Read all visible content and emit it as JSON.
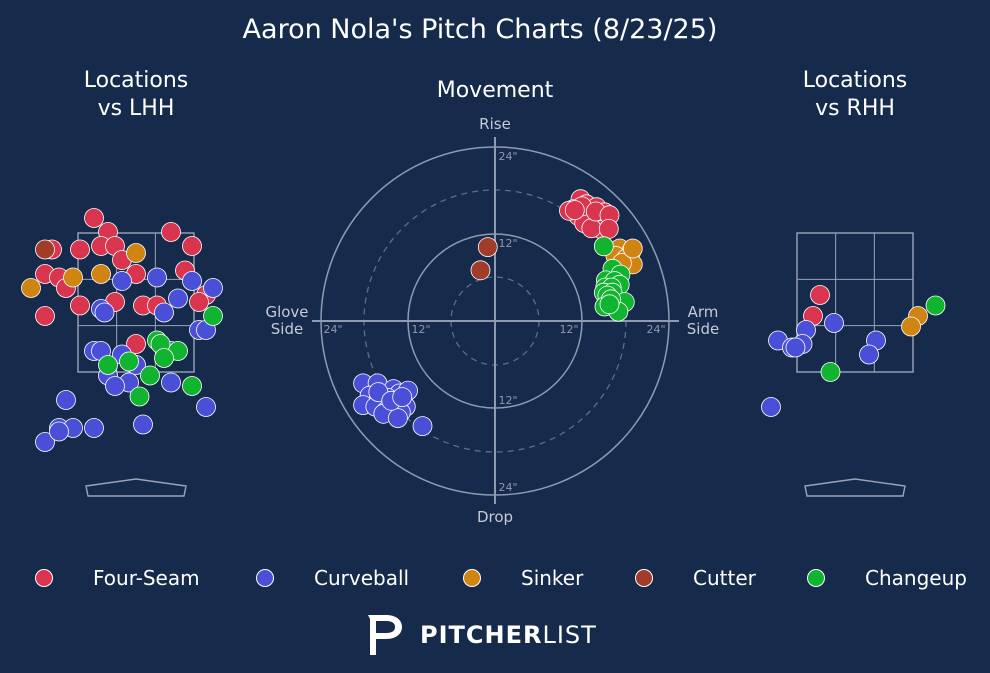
{
  "title": "Aaron Nola's Pitch Charts (8/23/25)",
  "panels": {
    "lhh_title": [
      "Locations",
      "vs LHH"
    ],
    "movement_title": "Movement",
    "rhh_title": [
      "Locations",
      "vs RHH"
    ]
  },
  "movement_labels": {
    "top": "Rise",
    "bottom": "Drop",
    "left": [
      "Glove",
      "Side"
    ],
    "right": [
      "Arm",
      "Side"
    ],
    "ring_labels": [
      "24\"",
      "12\"",
      "12\"",
      "24\"",
      "12\"",
      "24\"",
      "12\"",
      "24\""
    ]
  },
  "legend": [
    {
      "name": "Four-Seam",
      "color": "#d9354e"
    },
    {
      "name": "Curveball",
      "color": "#4a4fd8"
    },
    {
      "name": "Sinker",
      "color": "#d08412"
    },
    {
      "name": "Cutter",
      "color": "#a13b2a"
    },
    {
      "name": "Changeup",
      "color": "#10b42e"
    }
  ],
  "brand": {
    "bold": "PITCHER",
    "light": "LIST",
    "logo_icon": "pitcherlist-logo-icon"
  },
  "chart_data": [
    {
      "type": "scatter",
      "title": "Locations vs LHH",
      "x_units": "feet from plate center",
      "y_units": "feet above ground",
      "strike_zone": {
        "x": [
          -0.83,
          0.83
        ],
        "y": [
          1.5,
          3.5
        ]
      },
      "points": [
        {
          "pitch": "Four-Seam",
          "x": -0.6,
          "y": 3.7
        },
        {
          "pitch": "Four-Seam",
          "x": -0.4,
          "y": 3.5
        },
        {
          "pitch": "Four-Seam",
          "x": -0.5,
          "y": 3.3
        },
        {
          "pitch": "Four-Seam",
          "x": -0.3,
          "y": 3.3
        },
        {
          "pitch": "Four-Seam",
          "x": -0.8,
          "y": 3.25
        },
        {
          "pitch": "Four-Seam",
          "x": -1.2,
          "y": 3.25
        },
        {
          "pitch": "Four-Seam",
          "x": 0.5,
          "y": 3.5
        },
        {
          "pitch": "Four-Seam",
          "x": 0.8,
          "y": 3.3
        },
        {
          "pitch": "Four-Seam",
          "x": -0.2,
          "y": 3.1
        },
        {
          "pitch": "Four-Seam",
          "x": -1.3,
          "y": 2.9
        },
        {
          "pitch": "Four-Seam",
          "x": -1.1,
          "y": 2.85
        },
        {
          "pitch": "Four-Seam",
          "x": 0.0,
          "y": 2.9
        },
        {
          "pitch": "Four-Seam",
          "x": 0.7,
          "y": 2.95
        },
        {
          "pitch": "Four-Seam",
          "x": -1.0,
          "y": 2.7
        },
        {
          "pitch": "Four-Seam",
          "x": 1.0,
          "y": 2.6
        },
        {
          "pitch": "Four-Seam",
          "x": -0.3,
          "y": 2.5
        },
        {
          "pitch": "Four-Seam",
          "x": 0.1,
          "y": 2.45
        },
        {
          "pitch": "Four-Seam",
          "x": 0.3,
          "y": 2.45
        },
        {
          "pitch": "Four-Seam",
          "x": -0.8,
          "y": 2.45
        },
        {
          "pitch": "Four-Seam",
          "x": 0.9,
          "y": 2.5
        },
        {
          "pitch": "Four-Seam",
          "x": -1.3,
          "y": 2.3
        },
        {
          "pitch": "Four-Seam",
          "x": 0.0,
          "y": 1.9
        },
        {
          "pitch": "Curveball",
          "x": -0.5,
          "y": 2.4
        },
        {
          "pitch": "Curveball",
          "x": -0.2,
          "y": 2.8
        },
        {
          "pitch": "Curveball",
          "x": 0.3,
          "y": 2.85
        },
        {
          "pitch": "Curveball",
          "x": 0.8,
          "y": 2.8
        },
        {
          "pitch": "Curveball",
          "x": 1.1,
          "y": 2.7
        },
        {
          "pitch": "Curveball",
          "x": 0.6,
          "y": 2.55
        },
        {
          "pitch": "Curveball",
          "x": 0.4,
          "y": 2.35
        },
        {
          "pitch": "Curveball",
          "x": -0.45,
          "y": 2.35
        },
        {
          "pitch": "Curveball",
          "x": 0.9,
          "y": 2.1
        },
        {
          "pitch": "Curveball",
          "x": 1.0,
          "y": 2.1
        },
        {
          "pitch": "Curveball",
          "x": -0.6,
          "y": 1.8
        },
        {
          "pitch": "Curveball",
          "x": -0.5,
          "y": 1.8
        },
        {
          "pitch": "Curveball",
          "x": -0.2,
          "y": 1.75
        },
        {
          "pitch": "Curveball",
          "x": 0.5,
          "y": 1.8
        },
        {
          "pitch": "Curveball",
          "x": 0.0,
          "y": 1.6
        },
        {
          "pitch": "Curveball",
          "x": -0.4,
          "y": 1.45
        },
        {
          "pitch": "Curveball",
          "x": -0.1,
          "y": 1.35
        },
        {
          "pitch": "Curveball",
          "x": -0.3,
          "y": 1.3
        },
        {
          "pitch": "Curveball",
          "x": 0.5,
          "y": 1.35
        },
        {
          "pitch": "Curveball",
          "x": -1.0,
          "y": 1.1
        },
        {
          "pitch": "Curveball",
          "x": 1.0,
          "y": 1.0
        },
        {
          "pitch": "Curveball",
          "x": -1.1,
          "y": 0.7
        },
        {
          "pitch": "Curveball",
          "x": -0.9,
          "y": 0.7
        },
        {
          "pitch": "Curveball",
          "x": -0.6,
          "y": 0.7
        },
        {
          "pitch": "Curveball",
          "x": 0.1,
          "y": 0.75
        },
        {
          "pitch": "Curveball",
          "x": -1.3,
          "y": 0.5
        },
        {
          "pitch": "Curveball",
          "x": -1.1,
          "y": 0.65
        },
        {
          "pitch": "Sinker",
          "x": -0.9,
          "y": 2.85
        },
        {
          "pitch": "Sinker",
          "x": -0.5,
          "y": 2.9
        },
        {
          "pitch": "Sinker",
          "x": 0.0,
          "y": 3.2
        },
        {
          "pitch": "Sinker",
          "x": -1.5,
          "y": 2.7
        },
        {
          "pitch": "Cutter",
          "x": -1.3,
          "y": 3.25
        },
        {
          "pitch": "Changeup",
          "x": 1.1,
          "y": 2.3
        },
        {
          "pitch": "Changeup",
          "x": 0.3,
          "y": 1.95
        },
        {
          "pitch": "Changeup",
          "x": 0.35,
          "y": 1.9
        },
        {
          "pitch": "Changeup",
          "x": 0.6,
          "y": 1.8
        },
        {
          "pitch": "Changeup",
          "x": 0.4,
          "y": 1.7
        },
        {
          "pitch": "Changeup",
          "x": -0.1,
          "y": 1.65
        },
        {
          "pitch": "Changeup",
          "x": -0.4,
          "y": 1.6
        },
        {
          "pitch": "Changeup",
          "x": 0.2,
          "y": 1.45
        },
        {
          "pitch": "Changeup",
          "x": 0.8,
          "y": 1.3
        },
        {
          "pitch": "Changeup",
          "x": 0.05,
          "y": 1.15
        }
      ]
    },
    {
      "type": "scatter",
      "title": "Movement",
      "x_units": "inches of horizontal break (arm side positive)",
      "y_units": "inches of induced vertical break",
      "rings": [
        12,
        24
      ],
      "dashed_rings": [
        6,
        18
      ],
      "range": [
        -24,
        24
      ],
      "points": [
        {
          "pitch": "Four-Seam",
          "x": 11.8,
          "y": 16.8
        },
        {
          "pitch": "Four-Seam",
          "x": 12.6,
          "y": 16.1
        },
        {
          "pitch": "Four-Seam",
          "x": 14.0,
          "y": 15.7
        },
        {
          "pitch": "Four-Seam",
          "x": 15.1,
          "y": 15.0
        },
        {
          "pitch": "Four-Seam",
          "x": 10.8,
          "y": 15.4
        },
        {
          "pitch": "Four-Seam",
          "x": 12.0,
          "y": 15.2
        },
        {
          "pitch": "Four-Seam",
          "x": 13.0,
          "y": 14.8
        },
        {
          "pitch": "Four-Seam",
          "x": 14.2,
          "y": 14.2
        },
        {
          "pitch": "Four-Seam",
          "x": 12.5,
          "y": 14.0
        },
        {
          "pitch": "Four-Seam",
          "x": 11.5,
          "y": 14.5
        },
        {
          "pitch": "Four-Seam",
          "x": 13.8,
          "y": 13.3
        },
        {
          "pitch": "Four-Seam",
          "x": 15.0,
          "y": 13.2
        },
        {
          "pitch": "Four-Seam",
          "x": 12.3,
          "y": 13.5
        },
        {
          "pitch": "Four-Seam",
          "x": 14.8,
          "y": 12.6
        },
        {
          "pitch": "Four-Seam",
          "x": 13.3,
          "y": 12.8
        },
        {
          "pitch": "Four-Seam",
          "x": 12.0,
          "y": 15.8
        },
        {
          "pitch": "Four-Seam",
          "x": 10.2,
          "y": 15.2
        },
        {
          "pitch": "Four-Seam",
          "x": 11.0,
          "y": 15.3
        },
        {
          "pitch": "Four-Seam",
          "x": 13.9,
          "y": 15.1
        },
        {
          "pitch": "Four-Seam",
          "x": 15.8,
          "y": 14.6
        },
        {
          "pitch": "Four-Seam",
          "x": 15.7,
          "y": 12.7
        },
        {
          "pitch": "Sinker",
          "x": 17.2,
          "y": 10.0
        },
        {
          "pitch": "Sinker",
          "x": 18.8,
          "y": 9.6
        },
        {
          "pitch": "Sinker",
          "x": 16.6,
          "y": 9.0
        },
        {
          "pitch": "Sinker",
          "x": 18.1,
          "y": 8.6
        },
        {
          "pitch": "Sinker",
          "x": 19.0,
          "y": 7.8
        },
        {
          "pitch": "Sinker",
          "x": 17.5,
          "y": 8.0
        },
        {
          "pitch": "Sinker",
          "x": 19.0,
          "y": 10.0
        },
        {
          "pitch": "Changeup",
          "x": 15.0,
          "y": 10.3
        },
        {
          "pitch": "Changeup",
          "x": 16.2,
          "y": 7.2
        },
        {
          "pitch": "Changeup",
          "x": 17.3,
          "y": 6.4
        },
        {
          "pitch": "Changeup",
          "x": 15.3,
          "y": 5.6
        },
        {
          "pitch": "Changeup",
          "x": 16.5,
          "y": 5.5
        },
        {
          "pitch": "Changeup",
          "x": 17.2,
          "y": 5.0
        },
        {
          "pitch": "Changeup",
          "x": 15.2,
          "y": 4.6
        },
        {
          "pitch": "Changeup",
          "x": 16.1,
          "y": 4.6
        },
        {
          "pitch": "Changeup",
          "x": 15.0,
          "y": 3.9
        },
        {
          "pitch": "Changeup",
          "x": 16.2,
          "y": 3.9
        },
        {
          "pitch": "Changeup",
          "x": 15.5,
          "y": 3.5
        },
        {
          "pitch": "Changeup",
          "x": 17.9,
          "y": 2.6
        },
        {
          "pitch": "Changeup",
          "x": 15.1,
          "y": 2.0
        },
        {
          "pitch": "Changeup",
          "x": 17.0,
          "y": 1.3
        },
        {
          "pitch": "Changeup",
          "x": 16.0,
          "y": 3.0
        },
        {
          "pitch": "Changeup",
          "x": 15.8,
          "y": 2.3
        },
        {
          "pitch": "Cutter",
          "x": -1.0,
          "y": 10.2
        },
        {
          "pitch": "Cutter",
          "x": -2.0,
          "y": 7.0
        },
        {
          "pitch": "Curveball",
          "x": -18.2,
          "y": -8.6
        },
        {
          "pitch": "Curveball",
          "x": -16.2,
          "y": -8.6
        },
        {
          "pitch": "Curveball",
          "x": -14.0,
          "y": -9.4
        },
        {
          "pitch": "Curveball",
          "x": -13.2,
          "y": -10.0
        },
        {
          "pitch": "Curveball",
          "x": -12.0,
          "y": -9.6
        },
        {
          "pitch": "Curveball",
          "x": -17.3,
          "y": -10.3
        },
        {
          "pitch": "Curveball",
          "x": -16.0,
          "y": -10.6
        },
        {
          "pitch": "Curveball",
          "x": -14.8,
          "y": -10.6
        },
        {
          "pitch": "Curveball",
          "x": -13.5,
          "y": -11.0
        },
        {
          "pitch": "Curveball",
          "x": -12.3,
          "y": -11.8
        },
        {
          "pitch": "Curveball",
          "x": -18.2,
          "y": -11.6
        },
        {
          "pitch": "Curveball",
          "x": -16.5,
          "y": -11.8
        },
        {
          "pitch": "Curveball",
          "x": -15.0,
          "y": -12.4
        },
        {
          "pitch": "Curveball",
          "x": -13.0,
          "y": -12.6
        },
        {
          "pitch": "Curveball",
          "x": -15.4,
          "y": -12.8
        },
        {
          "pitch": "Curveball",
          "x": -13.4,
          "y": -13.4
        },
        {
          "pitch": "Curveball",
          "x": -10.0,
          "y": -14.5
        },
        {
          "pitch": "Curveball",
          "x": -16.1,
          "y": -9.8
        },
        {
          "pitch": "Curveball",
          "x": -14.3,
          "y": -11.0
        },
        {
          "pitch": "Curveball",
          "x": -12.8,
          "y": -10.5
        }
      ]
    },
    {
      "type": "scatter",
      "title": "Locations vs RHH",
      "x_units": "feet from plate center",
      "y_units": "feet above ground",
      "strike_zone": {
        "x": [
          -0.83,
          0.83
        ],
        "y": [
          1.5,
          3.5
        ]
      },
      "points": [
        {
          "pitch": "Four-Seam",
          "x": -0.5,
          "y": 2.6
        },
        {
          "pitch": "Four-Seam",
          "x": -0.6,
          "y": 2.3
        },
        {
          "pitch": "Curveball",
          "x": -0.3,
          "y": 2.2
        },
        {
          "pitch": "Curveball",
          "x": -0.7,
          "y": 2.1
        },
        {
          "pitch": "Curveball",
          "x": -1.1,
          "y": 1.95
        },
        {
          "pitch": "Curveball",
          "x": -0.9,
          "y": 1.85
        },
        {
          "pitch": "Curveball",
          "x": -0.75,
          "y": 1.9
        },
        {
          "pitch": "Curveball",
          "x": -0.85,
          "y": 1.85
        },
        {
          "pitch": "Curveball",
          "x": 0.3,
          "y": 1.95
        },
        {
          "pitch": "Curveball",
          "x": 0.2,
          "y": 1.75
        },
        {
          "pitch": "Curveball",
          "x": -1.2,
          "y": 1.0
        },
        {
          "pitch": "Sinker",
          "x": 0.9,
          "y": 2.3
        },
        {
          "pitch": "Sinker",
          "x": 0.8,
          "y": 2.15
        },
        {
          "pitch": "Changeup",
          "x": 1.15,
          "y": 2.45
        },
        {
          "pitch": "Changeup",
          "x": -0.35,
          "y": 1.5
        }
      ]
    }
  ]
}
